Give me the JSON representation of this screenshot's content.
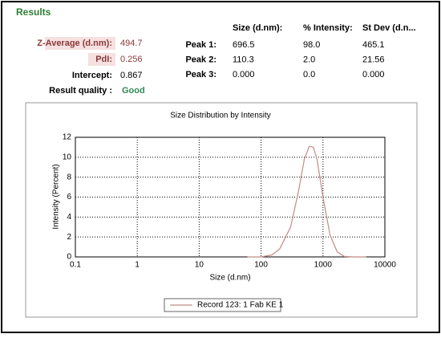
{
  "results": {
    "title": "Results",
    "summary": [
      {
        "label": "Z-Average (d.nm):",
        "value": "494.7"
      },
      {
        "label": "PdI:",
        "value": "0.256"
      },
      {
        "label": "Intercept:",
        "value": "0.867"
      }
    ],
    "quality": {
      "label": "Result quality :",
      "value": "Good"
    },
    "table": {
      "headers": [
        "Size (d.nm):",
        "% Intensity:",
        "St Dev (d.n..."
      ],
      "rows": [
        [
          "Peak 1:",
          "696.5",
          "98.0",
          "465.1"
        ],
        [
          "Peak 2:",
          "110.3",
          "2.0",
          "21.56"
        ],
        [
          "Peak 3:",
          "0.000",
          "0.0",
          "0.000"
        ]
      ]
    }
  },
  "chart_data": {
    "type": "line",
    "title": "Size Distribution by Intensity",
    "x_label": "Size (d.nm)",
    "y_label": "Intensity (Percent)",
    "x": [
      60,
      100,
      150,
      200,
      300,
      400,
      500,
      600,
      700,
      800,
      1000,
      1300,
      1700,
      2200,
      3000,
      5000
    ],
    "series": [
      {
        "name": "Record 123: 1 Fab KE 1",
        "color": "#c48a8a",
        "values": [
          0,
          0,
          0.2,
          0.8,
          3,
          6.5,
          9.8,
          11.1,
          11,
          9.8,
          6,
          2.2,
          0.5,
          0.05,
          0,
          0
        ]
      }
    ],
    "xlim": [
      0.1,
      10000
    ],
    "x_log": true,
    "xticks": [
      0.1,
      1,
      10,
      100,
      1000,
      10000
    ],
    "ylim": [
      0,
      12
    ],
    "yticks": [
      0,
      2,
      4,
      6,
      8,
      10,
      12
    ],
    "grid": true
  }
}
